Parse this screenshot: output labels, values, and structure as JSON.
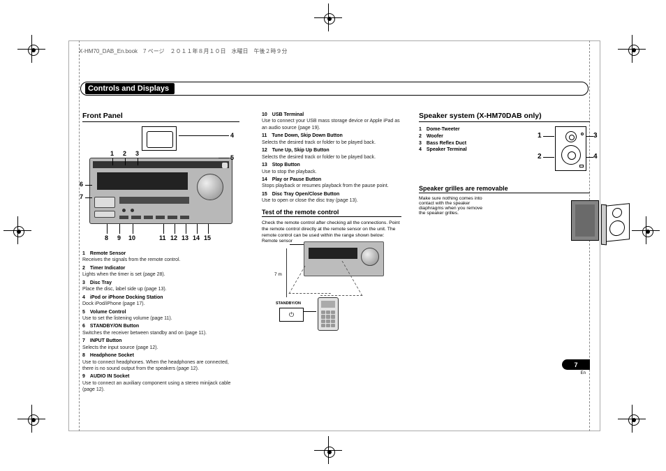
{
  "header_line": "X-HM70_DAB_En.book　7 ページ　２０１１年８月１０日　水曜日　午後２時９分",
  "section_title": "Controls and Displays",
  "front_panel": {
    "heading": "Front Panel",
    "callouts_top": [
      "1",
      "2",
      "3",
      "4",
      "5"
    ],
    "callouts_left": [
      "6",
      "7"
    ],
    "callouts_bottom": [
      "8",
      "9",
      "10",
      "11",
      "12",
      "13",
      "14",
      "15"
    ],
    "items": [
      {
        "n": "1",
        "t": "Remote Sensor",
        "d": "Receives the signals from the remote control."
      },
      {
        "n": "2",
        "t": "Timer Indicator",
        "d": "Lights when the timer is set (page 28)."
      },
      {
        "n": "3",
        "t": "Disc Tray",
        "d": "Place the disc, label side up (page 13)."
      },
      {
        "n": "4",
        "t": "iPod or iPhone Docking Station",
        "d": "Dock iPod/iPhone (page 17)."
      },
      {
        "n": "5",
        "t": "Volume Control",
        "d": "Use to set the listening volume (page 11)."
      },
      {
        "n": "6",
        "t": "STANDBY/ON Button",
        "d": "Switches the receiver between standby and on (page 11)."
      },
      {
        "n": "7",
        "t": "INPUT Button",
        "d": "Selects the input source (page 12)."
      },
      {
        "n": "8",
        "t": "Headphone Socket",
        "d": "Use to connect headphones. When the headphones are connected, there is no sound output from the speakers (page 12)."
      },
      {
        "n": "9",
        "t": "AUDIO IN Socket",
        "d": "Use to connect an auxiliary component using a stereo minijack cable  (page 12)."
      }
    ]
  },
  "col2": {
    "items": [
      {
        "n": "10",
        "t": "USB Terminal",
        "d": "Use to connect your USB mass storage device or Apple iPad as an audio source (page 19)."
      },
      {
        "n": "11",
        "t": "Tune Down, Skip Down Button",
        "d": "Selects the desired track or folder to be played back."
      },
      {
        "n": "12",
        "t": "Tune Up, Skip Up Button",
        "d": "Selects the desired track or folder to be played back."
      },
      {
        "n": "13",
        "t": "Stop Button",
        "d": "Use to stop the playback."
      },
      {
        "n": "14",
        "t": "Play or Pause Button",
        "d": "Stops playback or resumes playback from the pause point."
      },
      {
        "n": "15",
        "t": "Disc Tray Open/Close Button",
        "d": "Use to open or close the disc tray (page 13)."
      }
    ],
    "remote_heading": "Test of the remote control",
    "remote_text": "Check the remote control after checking all the connections. Point the remote control directly at the remote sensor on the unit. The remote control can be used within the range shown below:",
    "sensor_label": "Remote sensor",
    "distance": "7 m",
    "standby_label": "STANDBY/ON",
    "power_glyph": "⏻"
  },
  "col3": {
    "heading": "Speaker system (X-HM70DAB only)",
    "parts": [
      {
        "n": "1",
        "t": "Dome-Tweeter"
      },
      {
        "n": "2",
        "t": "Woofer"
      },
      {
        "n": "3",
        "t": "Bass Reflex Duct"
      },
      {
        "n": "4",
        "t": "Speaker Terminal"
      }
    ],
    "callouts": [
      "1",
      "2",
      "3",
      "4"
    ],
    "grilles_heading": "Speaker grilles are removable",
    "grilles_text": "Make sure nothing comes into contact with the speaker diaphragms when you remove the speaker grilles."
  },
  "page_number": "7",
  "page_lang": "En",
  "colors": {
    "unit_body": "#b8b8b8",
    "unit_dark": "#333333",
    "knob_light": "#eeeeee",
    "knob_dark": "#888888",
    "frame": "#aaaaaa",
    "text": "#000000",
    "bg": "#ffffff",
    "grille": "#848484"
  }
}
